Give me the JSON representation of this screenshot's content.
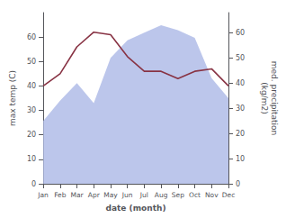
{
  "chart_data": {
    "type": "line",
    "categories": [
      "Jan",
      "Feb",
      "Mar",
      "Apr",
      "May",
      "Jun",
      "Jul",
      "Aug",
      "Sep",
      "Oct",
      "Nov",
      "Dec"
    ],
    "xlabel": "date (month)",
    "ylabel": "max temp (C)",
    "y2label": "med. precipitation\n(kg/m2)",
    "series": [
      {
        "type": "area",
        "axis": "y2",
        "color": "#b0bce8",
        "values": [
          25,
          33,
          40,
          32,
          50,
          57,
          60,
          63,
          61,
          58,
          42,
          34
        ]
      },
      {
        "type": "line",
        "color": "#883344",
        "values": [
          40,
          45,
          56,
          62,
          61,
          52,
          46,
          46,
          43,
          46,
          47,
          40
        ]
      }
    ],
    "ylim": [
      0,
      70
    ],
    "yticks": [
      0,
      10,
      20,
      30,
      40,
      50,
      60
    ],
    "y2lim": [
      0,
      68
    ],
    "y2ticks": [
      0,
      10,
      20,
      30,
      40,
      50,
      60
    ],
    "grid": false
  }
}
